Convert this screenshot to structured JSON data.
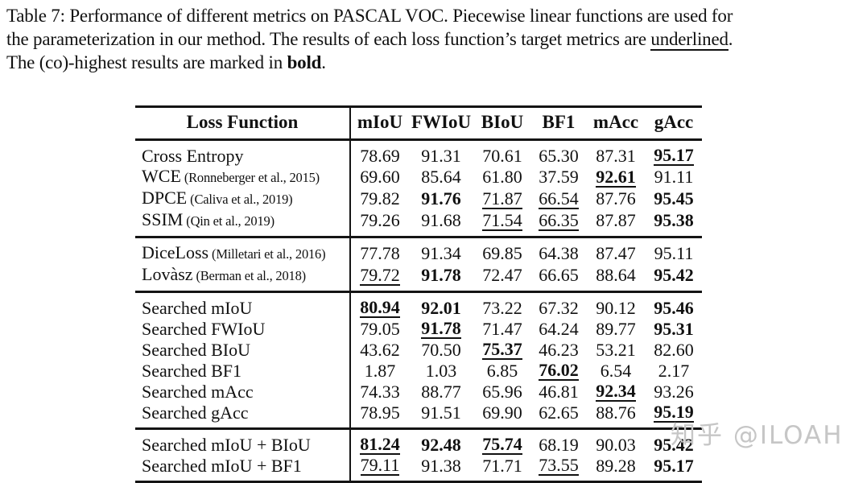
{
  "caption": {
    "line1": "Table 7: Performance of different metrics on PASCAL VOC. Piecewise linear functions are used for",
    "line2_pre": "the parameterization in our method. The results of each loss function’s target metrics are ",
    "line2_underlined_word": "underlined",
    "line2_post": ".",
    "line3_pre": "The (co)-highest results are marked in ",
    "line3_bold_word": "bold",
    "line3_post": "."
  },
  "table": {
    "header": [
      "Loss Function",
      "mIoU",
      "FWIoU",
      "BIoU",
      "BF1",
      "mAcc",
      "gAcc"
    ],
    "groups": [
      {
        "rows": [
          {
            "label": "Cross Entropy",
            "cite": "",
            "cells": [
              {
                "t": "78.69",
                "s": ""
              },
              {
                "t": "91.31",
                "s": ""
              },
              {
                "t": "70.61",
                "s": ""
              },
              {
                "t": "65.30",
                "s": ""
              },
              {
                "t": "87.31",
                "s": ""
              },
              {
                "t": "95.17",
                "s": "bu"
              }
            ]
          },
          {
            "label": "WCE",
            "cite": "(Ronneberger et al., 2015)",
            "cells": [
              {
                "t": "69.60",
                "s": ""
              },
              {
                "t": "85.64",
                "s": ""
              },
              {
                "t": "61.80",
                "s": ""
              },
              {
                "t": "37.59",
                "s": ""
              },
              {
                "t": "92.61",
                "s": "bu"
              },
              {
                "t": "91.11",
                "s": ""
              }
            ]
          },
          {
            "label": "DPCE",
            "cite": "(Caliva et al., 2019)",
            "cells": [
              {
                "t": "79.82",
                "s": ""
              },
              {
                "t": "91.76",
                "s": "b"
              },
              {
                "t": "71.87",
                "s": "u"
              },
              {
                "t": "66.54",
                "s": "u"
              },
              {
                "t": "87.76",
                "s": ""
              },
              {
                "t": "95.45",
                "s": "b"
              }
            ]
          },
          {
            "label": "SSIM",
            "cite": "(Qin et al., 2019)",
            "cells": [
              {
                "t": "79.26",
                "s": ""
              },
              {
                "t": "91.68",
                "s": ""
              },
              {
                "t": "71.54",
                "s": "u"
              },
              {
                "t": "66.35",
                "s": "u"
              },
              {
                "t": "87.87",
                "s": ""
              },
              {
                "t": "95.38",
                "s": "b"
              }
            ]
          }
        ]
      },
      {
        "rows": [
          {
            "label": "DiceLoss",
            "cite": "(Milletari et al., 2016)",
            "cells": [
              {
                "t": "77.78",
                "s": ""
              },
              {
                "t": "91.34",
                "s": ""
              },
              {
                "t": "69.85",
                "s": ""
              },
              {
                "t": "64.38",
                "s": ""
              },
              {
                "t": "87.47",
                "s": ""
              },
              {
                "t": "95.11",
                "s": ""
              }
            ]
          },
          {
            "label": "Lovàsz",
            "cite": "(Berman et al., 2018)",
            "cells": [
              {
                "t": "79.72",
                "s": "u"
              },
              {
                "t": "91.78",
                "s": "b"
              },
              {
                "t": "72.47",
                "s": ""
              },
              {
                "t": "66.65",
                "s": ""
              },
              {
                "t": "88.64",
                "s": ""
              },
              {
                "t": "95.42",
                "s": "b"
              }
            ]
          }
        ]
      },
      {
        "rows": [
          {
            "label": "Searched mIoU",
            "cite": "",
            "cells": [
              {
                "t": "80.94",
                "s": "bu"
              },
              {
                "t": "92.01",
                "s": "b"
              },
              {
                "t": "73.22",
                "s": ""
              },
              {
                "t": "67.32",
                "s": ""
              },
              {
                "t": "90.12",
                "s": ""
              },
              {
                "t": "95.46",
                "s": "b"
              }
            ]
          },
          {
            "label": "Searched FWIoU",
            "cite": "",
            "cells": [
              {
                "t": "79.05",
                "s": ""
              },
              {
                "t": "91.78",
                "s": "bu"
              },
              {
                "t": "71.47",
                "s": ""
              },
              {
                "t": "64.24",
                "s": ""
              },
              {
                "t": "89.77",
                "s": ""
              },
              {
                "t": "95.31",
                "s": "b"
              }
            ]
          },
          {
            "label": "Searched BIoU",
            "cite": "",
            "cells": [
              {
                "t": "43.62",
                "s": ""
              },
              {
                "t": "70.50",
                "s": ""
              },
              {
                "t": "75.37",
                "s": "bu"
              },
              {
                "t": "46.23",
                "s": ""
              },
              {
                "t": "53.21",
                "s": ""
              },
              {
                "t": "82.60",
                "s": ""
              }
            ]
          },
          {
            "label": "Searched BF1",
            "cite": "",
            "cells": [
              {
                "t": "1.87",
                "s": ""
              },
              {
                "t": "1.03",
                "s": ""
              },
              {
                "t": "6.85",
                "s": ""
              },
              {
                "t": "76.02",
                "s": "bu"
              },
              {
                "t": "6.54",
                "s": ""
              },
              {
                "t": "2.17",
                "s": ""
              }
            ]
          },
          {
            "label": "Searched mAcc",
            "cite": "",
            "cells": [
              {
                "t": "74.33",
                "s": ""
              },
              {
                "t": "88.77",
                "s": ""
              },
              {
                "t": "65.96",
                "s": ""
              },
              {
                "t": "46.81",
                "s": ""
              },
              {
                "t": "92.34",
                "s": "bu"
              },
              {
                "t": "93.26",
                "s": ""
              }
            ]
          },
          {
            "label": "Searched gAcc",
            "cite": "",
            "cells": [
              {
                "t": "78.95",
                "s": ""
              },
              {
                "t": "91.51",
                "s": ""
              },
              {
                "t": "69.90",
                "s": ""
              },
              {
                "t": "62.65",
                "s": ""
              },
              {
                "t": "88.76",
                "s": ""
              },
              {
                "t": "95.19",
                "s": "bu"
              }
            ]
          }
        ]
      },
      {
        "rows": [
          {
            "label": "Searched mIoU + BIoU",
            "cite": "",
            "cells": [
              {
                "t": "81.24",
                "s": "bu"
              },
              {
                "t": "92.48",
                "s": "b"
              },
              {
                "t": "75.74",
                "s": "bu"
              },
              {
                "t": "68.19",
                "s": ""
              },
              {
                "t": "90.03",
                "s": ""
              },
              {
                "t": "95.42",
                "s": "b"
              }
            ]
          },
          {
            "label": "Searched mIoU + BF1",
            "cite": "",
            "cells": [
              {
                "t": "79.11",
                "s": "u"
              },
              {
                "t": "91.38",
                "s": ""
              },
              {
                "t": "71.71",
                "s": ""
              },
              {
                "t": "73.55",
                "s": "u"
              },
              {
                "t": "89.28",
                "s": ""
              },
              {
                "t": "95.17",
                "s": "b"
              }
            ]
          }
        ]
      }
    ]
  },
  "watermark": "知乎 @ILOAH",
  "colors": {
    "text": "#111111",
    "rule": "#141414",
    "watermark": "#c6c6c6",
    "background": "#ffffff"
  }
}
